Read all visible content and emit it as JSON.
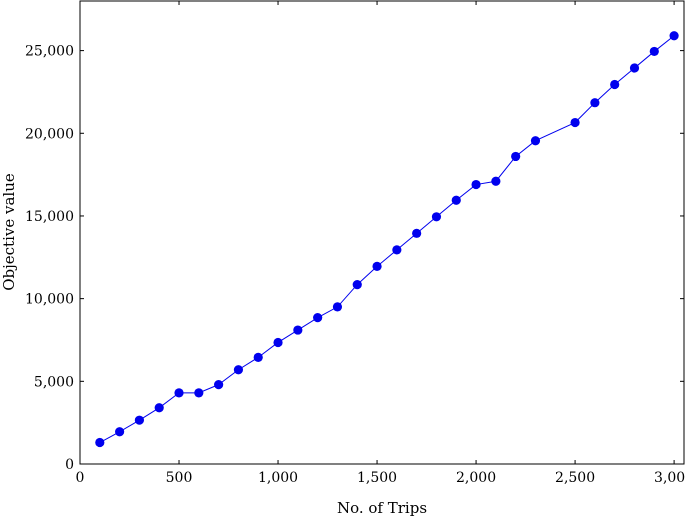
{
  "chart_data": {
    "type": "line",
    "xlabel": "No. of Trips",
    "ylabel": "Objective value",
    "xlim": [
      0,
      3050
    ],
    "ylim": [
      0,
      28000
    ],
    "xticks": [
      0,
      500,
      1000,
      1500,
      2000,
      2500,
      3000
    ],
    "xtick_labels": [
      "0",
      "500",
      "1,000",
      "1,500",
      "2,000",
      "2,500",
      "3,000"
    ],
    "yticks": [
      0,
      5000,
      10000,
      15000,
      20000,
      25000
    ],
    "ytick_labels": [
      "0",
      "5,000",
      "10,000",
      "15,000",
      "20,000",
      "25,000"
    ],
    "grid": false,
    "series": [
      {
        "color": "#0000ee",
        "x": [
          100,
          200,
          300,
          400,
          500,
          600,
          700,
          800,
          900,
          1000,
          1100,
          1200,
          1300,
          1400,
          1500,
          1600,
          1700,
          1800,
          1900,
          2000,
          2100,
          2200,
          2300,
          2500,
          2600,
          2700,
          2800,
          2900,
          3000
        ],
        "y": [
          1300,
          1950,
          2650,
          3400,
          4300,
          4300,
          4800,
          5700,
          6450,
          7350,
          8100,
          8850,
          9500,
          10850,
          11950,
          12950,
          13950,
          14950,
          15950,
          16900,
          17100,
          18600,
          19550,
          20650,
          21850,
          22950,
          23950,
          24950,
          25900
        ]
      }
    ]
  }
}
